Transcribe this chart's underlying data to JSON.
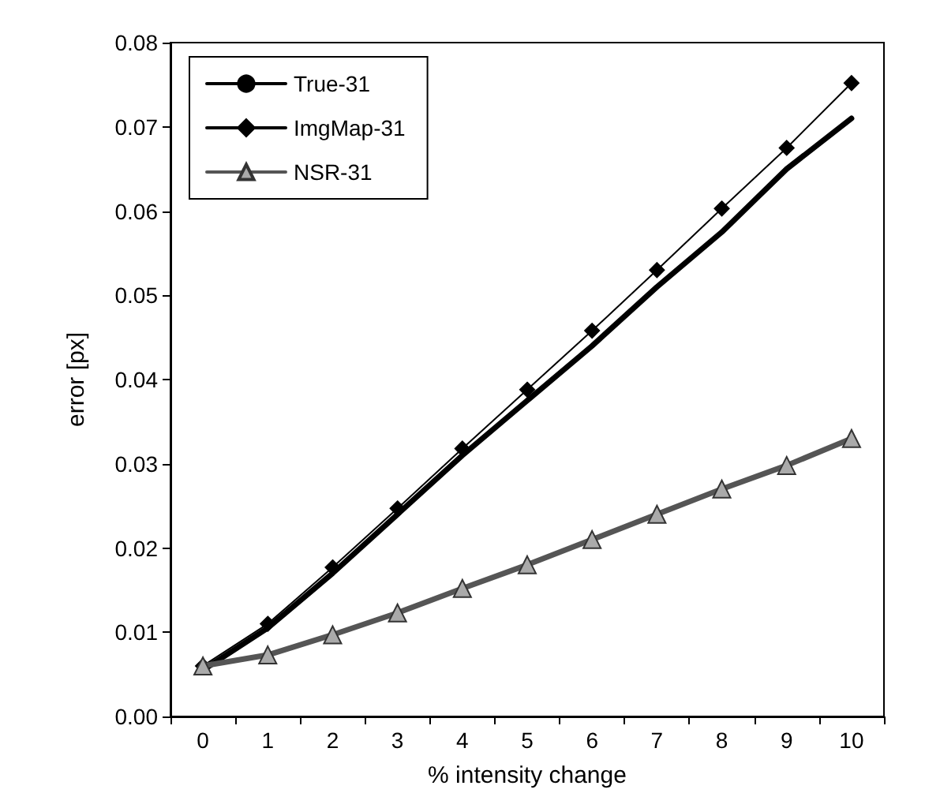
{
  "chart_data": {
    "type": "line",
    "xlabel": "% intensity change",
    "ylabel": "error [px]",
    "categories": [
      "0",
      "1",
      "2",
      "3",
      "4",
      "5",
      "6",
      "7",
      "8",
      "9",
      "10"
    ],
    "series": [
      {
        "name": "True-31",
        "color": "#000000",
        "marker": "none",
        "values": [
          0.0055,
          0.0105,
          0.017,
          0.024,
          0.031,
          0.0375,
          0.044,
          0.051,
          0.0575,
          0.065,
          0.071
        ]
      },
      {
        "name": "ImgMap-31",
        "color": "#000000",
        "marker": "diamond",
        "values": [
          0.006,
          0.011,
          0.0177,
          0.0247,
          0.0318,
          0.0388,
          0.0458,
          0.053,
          0.0603,
          0.0675,
          0.0752
        ]
      },
      {
        "name": "NSR-31",
        "color": "#555555",
        "marker": "triangle",
        "values": [
          0.006,
          0.0073,
          0.0097,
          0.0123,
          0.0152,
          0.018,
          0.021,
          0.024,
          0.027,
          0.0298,
          0.033
        ]
      }
    ],
    "ylim": [
      0,
      0.08
    ],
    "yticks": [
      {
        "value": 0,
        "label": "0.00"
      },
      {
        "value": 0.01,
        "label": "0.01"
      },
      {
        "value": 0.02,
        "label": "0.02"
      },
      {
        "value": 0.03,
        "label": "0.03"
      },
      {
        "value": 0.04,
        "label": "0.04"
      },
      {
        "value": 0.05,
        "label": "0.05"
      },
      {
        "value": 0.06,
        "label": "0.06"
      },
      {
        "value": 0.07,
        "label": "0.07"
      },
      {
        "value": 0.08,
        "label": "0.08"
      }
    ],
    "grid": false,
    "legend": "top left"
  }
}
